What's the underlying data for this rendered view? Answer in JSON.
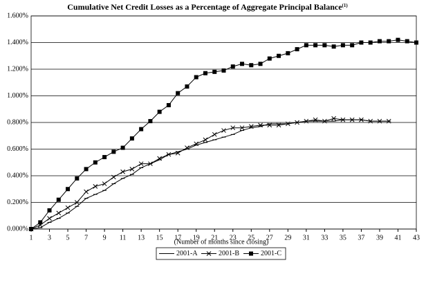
{
  "chart_data": {
    "type": "line",
    "title": "Cumulative Net Credit Losses as a Percentage of Aggregate Principal Balance",
    "title_note": "(1)",
    "x_label": "(Number of months since closing)",
    "x": [
      1,
      2,
      3,
      4,
      5,
      6,
      7,
      8,
      9,
      10,
      11,
      12,
      13,
      14,
      15,
      16,
      17,
      18,
      19,
      20,
      21,
      22,
      23,
      24,
      25,
      26,
      27,
      28,
      29,
      30,
      31,
      32,
      33,
      34,
      35,
      36,
      37,
      38,
      39,
      40,
      41,
      42,
      43
    ],
    "xlim": [
      1,
      43
    ],
    "xticks": [
      1,
      3,
      5,
      7,
      9,
      11,
      13,
      15,
      17,
      19,
      21,
      23,
      25,
      27,
      29,
      31,
      33,
      35,
      37,
      39,
      41,
      43
    ],
    "ylim": [
      0,
      1.6
    ],
    "yticks": [
      {
        "value": 0,
        "label": "0.000%"
      },
      {
        "value": 0.2,
        "label": "0.200%"
      },
      {
        "value": 0.4,
        "label": "0.400%"
      },
      {
        "value": 0.6,
        "label": "0.600%"
      },
      {
        "value": 0.8,
        "label": "0.800%"
      },
      {
        "value": 1.0,
        "label": "1.000%"
      },
      {
        "value": 1.2,
        "label": "1.200%"
      },
      {
        "value": 1.4,
        "label": "1.400%"
      },
      {
        "value": 1.6,
        "label": "1.600%"
      }
    ],
    "grid": true,
    "legend": "bottom",
    "series": [
      {
        "name": "2001-A",
        "color": "#000000",
        "marker": "dash",
        "values": [
          0,
          0.01,
          0.05,
          0.08,
          0.12,
          0.17,
          0.23,
          0.26,
          0.29,
          0.34,
          0.38,
          0.41,
          0.46,
          0.49,
          0.52,
          0.56,
          0.58,
          0.6,
          0.63,
          0.65,
          0.67,
          0.69,
          0.71,
          0.74,
          0.76,
          0.77,
          0.79,
          0.79,
          0.79,
          0.8,
          0.81,
          0.81,
          0.81,
          0.81,
          0.82,
          0.82,
          0.82,
          0.81,
          0.81,
          0.81,
          null,
          null,
          null
        ]
      },
      {
        "name": "2001-B",
        "color": "#000000",
        "marker": "x",
        "values": [
          0,
          0.03,
          0.08,
          0.12,
          0.16,
          0.2,
          0.28,
          0.32,
          0.34,
          0.39,
          0.43,
          0.45,
          0.49,
          0.49,
          0.53,
          0.56,
          0.57,
          0.61,
          0.64,
          0.67,
          0.71,
          0.74,
          0.76,
          0.76,
          0.77,
          0.78,
          0.78,
          0.78,
          0.79,
          0.8,
          0.81,
          0.82,
          0.81,
          0.83,
          0.82,
          0.82,
          0.82,
          0.81,
          0.81,
          0.81,
          null,
          null,
          null
        ]
      },
      {
        "name": "2001-C",
        "color": "#000000",
        "marker": "square",
        "values": [
          0,
          0.05,
          0.14,
          0.22,
          0.3,
          0.38,
          0.45,
          0.5,
          0.54,
          0.58,
          0.61,
          0.68,
          0.75,
          0.81,
          0.88,
          0.93,
          1.02,
          1.07,
          1.14,
          1.17,
          1.18,
          1.19,
          1.22,
          1.24,
          1.23,
          1.24,
          1.28,
          1.3,
          1.32,
          1.35,
          1.38,
          1.38,
          1.38,
          1.37,
          1.38,
          1.38,
          1.4,
          1.4,
          1.41,
          1.41,
          1.42,
          1.41,
          1.4
        ]
      }
    ]
  }
}
